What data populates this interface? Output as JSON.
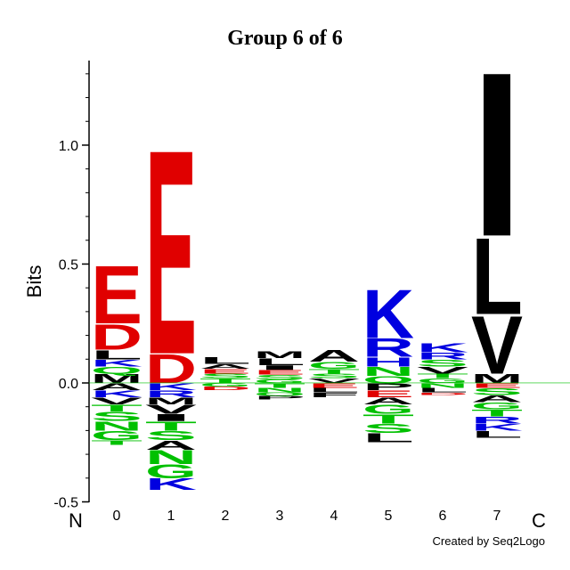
{
  "chart_data": {
    "type": "logo",
    "title": "Group 6 of 6",
    "ylabel": "Bits",
    "left_label": "N",
    "right_label": "C",
    "footer": "Created by Seq2Logo",
    "categories": [
      "0",
      "1",
      "2",
      "3",
      "4",
      "5",
      "6",
      "7"
    ],
    "ylim": [
      -0.5,
      1.35
    ],
    "yticks": [
      {
        "value": -0.5,
        "label": "-0.5"
      },
      {
        "value": 0,
        "label": "0.0"
      },
      0.5,
      {
        "value": 1,
        "label": "1.0"
      }
    ],
    "yminor": [
      -0.4,
      -0.3,
      -0.2,
      -0.1,
      0.1,
      0.2,
      0.3,
      0.4,
      0.6,
      0.7,
      0.8,
      0.9,
      1.1,
      1.2,
      1.3
    ],
    "colors": {
      "D": "#e00000",
      "E": "#e00000",
      "K": "#0000e0",
      "R": "#0000e0",
      "H": "#0000e0",
      "S": "#00c000",
      "T": "#00c000",
      "N": "#00c000",
      "Q": "#00c000",
      "G": "#00c000",
      "Y": "#00c000",
      "C": "#00c000",
      "A": "#000000",
      "V": "#000000",
      "L": "#000000",
      "I": "#000000",
      "M": "#000000",
      "F": "#000000",
      "P": "#000000",
      "W": "#000000"
    },
    "positions": [
      {
        "letters": [
          {
            "letter": "M",
            "value": 0.04
          },
          {
            "letter": "Q",
            "value": 0.03
          },
          {
            "letter": "K",
            "value": 0.03
          },
          {
            "letter": "L",
            "value": 0.04
          },
          {
            "letter": "D",
            "value": 0.11
          },
          {
            "letter": "E",
            "value": 0.25
          },
          {
            "letter": "A",
            "value": -0.03
          },
          {
            "letter": "K",
            "value": -0.03
          },
          {
            "letter": "V",
            "value": -0.03
          },
          {
            "letter": "T",
            "value": -0.03
          },
          {
            "letter": "S",
            "value": -0.04
          },
          {
            "letter": "N",
            "value": -0.04
          },
          {
            "letter": "G",
            "value": -0.04
          },
          {
            "letter": "T",
            "value": -0.02
          }
        ]
      },
      {
        "letters": [
          {
            "letter": "D",
            "value": 0.125
          },
          {
            "letter": "E",
            "value": 0.885
          },
          {
            "letter": "K",
            "value": -0.03
          },
          {
            "letter": "R",
            "value": -0.03
          },
          {
            "letter": "M",
            "value": -0.03
          },
          {
            "letter": "V",
            "value": -0.04
          },
          {
            "letter": "I",
            "value": -0.03
          },
          {
            "letter": "T",
            "value": -0.04
          },
          {
            "letter": "S",
            "value": -0.04
          },
          {
            "letter": "A",
            "value": -0.04
          },
          {
            "letter": "N",
            "value": -0.06
          },
          {
            "letter": "G",
            "value": -0.06
          },
          {
            "letter": "K",
            "value": -0.05
          }
        ]
      },
      {
        "letters": [
          {
            "letter": "T",
            "value": 0.02
          },
          {
            "letter": "S",
            "value": 0.02
          },
          {
            "letter": "E",
            "value": 0.02
          },
          {
            "letter": "A",
            "value": 0.02
          },
          {
            "letter": "L",
            "value": 0.03
          },
          {
            "letter": "G",
            "value": -0.015
          },
          {
            "letter": "D",
            "value": -0.015
          }
        ]
      },
      {
        "letters": [
          {
            "letter": "G",
            "value": 0.015
          },
          {
            "letter": "S",
            "value": 0.02
          },
          {
            "letter": "E",
            "value": 0.02
          },
          {
            "letter": "I",
            "value": 0.02
          },
          {
            "letter": "L",
            "value": 0.03
          },
          {
            "letter": "M",
            "value": 0.03
          },
          {
            "letter": "T",
            "value": -0.02
          },
          {
            "letter": "N",
            "value": -0.02
          },
          {
            "letter": "Q",
            "value": -0.015
          },
          {
            "letter": "P",
            "value": -0.015
          }
        ]
      },
      {
        "letters": [
          {
            "letter": "V",
            "value": 0.02
          },
          {
            "letter": "S",
            "value": 0.02
          },
          {
            "letter": "T",
            "value": 0.02
          },
          {
            "letter": "G",
            "value": 0.03
          },
          {
            "letter": "A",
            "value": 0.05
          },
          {
            "letter": "E",
            "value": -0.02
          },
          {
            "letter": "L",
            "value": -0.02
          },
          {
            "letter": "F",
            "value": -0.02
          }
        ]
      },
      {
        "letters": [
          {
            "letter": "Q",
            "value": 0.03
          },
          {
            "letter": "N",
            "value": 0.04
          },
          {
            "letter": "H",
            "value": 0.04
          },
          {
            "letter": "R",
            "value": 0.08
          },
          {
            "letter": "K",
            "value": 0.21
          },
          {
            "letter": "P",
            "value": -0.03
          },
          {
            "letter": "E",
            "value": -0.03
          },
          {
            "letter": "A",
            "value": -0.03
          },
          {
            "letter": "G",
            "value": -0.04
          },
          {
            "letter": "T",
            "value": -0.04
          },
          {
            "letter": "S",
            "value": -0.04
          },
          {
            "letter": "L",
            "value": -0.04
          }
        ]
      },
      {
        "letters": [
          {
            "letter": "G",
            "value": 0.02
          },
          {
            "letter": "T",
            "value": 0.02
          },
          {
            "letter": "V",
            "value": 0.03
          },
          {
            "letter": "S",
            "value": 0.03
          },
          {
            "letter": "R",
            "value": 0.03
          },
          {
            "letter": "K",
            "value": 0.04
          },
          {
            "letter": "N",
            "value": -0.02
          },
          {
            "letter": "L",
            "value": -0.02
          },
          {
            "letter": "D",
            "value": -0.01
          }
        ]
      },
      {
        "letters": [
          {
            "letter": "M",
            "value": 0.04
          },
          {
            "letter": "V",
            "value": 0.25
          },
          {
            "letter": "L",
            "value": 0.33
          },
          {
            "letter": "I",
            "value": 0.71
          },
          {
            "letter": "E",
            "value": -0.02
          },
          {
            "letter": "S",
            "value": -0.03
          },
          {
            "letter": "A",
            "value": -0.03
          },
          {
            "letter": "G",
            "value": -0.03
          },
          {
            "letter": "T",
            "value": -0.03
          },
          {
            "letter": "R",
            "value": -0.03
          },
          {
            "letter": "K",
            "value": -0.03
          },
          {
            "letter": "L",
            "value": -0.03
          }
        ]
      }
    ]
  }
}
